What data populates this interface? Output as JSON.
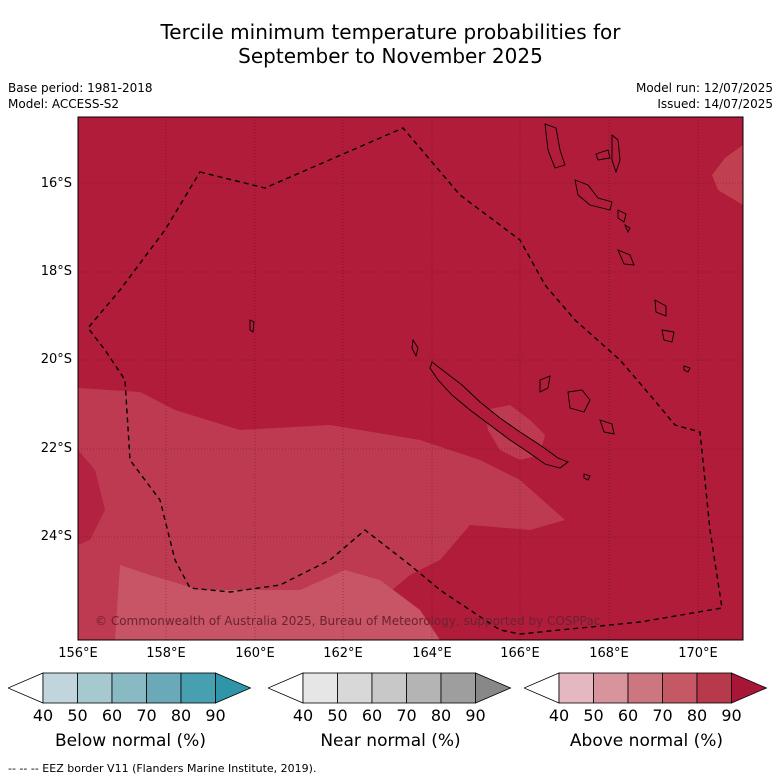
{
  "title_line1": "Tercile minimum temperature probabilities for",
  "title_line2": "September to November 2025",
  "base_period": "Base period: 1981-2018",
  "model": "Model: ACCESS-S2",
  "model_run": "Model run: 12/07/2025",
  "issued": "Issued: 14/07/2025",
  "lat_labels": [
    "16°S",
    "18°S",
    "20°S",
    "22°S",
    "24°S"
  ],
  "lon_labels": [
    "156°E",
    "158°E",
    "160°E",
    "162°E",
    "164°E",
    "166°E",
    "168°E",
    "170°E"
  ],
  "copyright": "© Commonwealth of Australia 2025, Bureau of Meteorology, supported by COSPPac",
  "colorbars": [
    {
      "label": "Below normal (%)",
      "ticks": [
        "40",
        "50",
        "60",
        "70",
        "80",
        "90"
      ],
      "colors": [
        "#c1d6dc",
        "#a6c8cf",
        "#89b9c3",
        "#6aaab8",
        "#47a0b0"
      ],
      "low": "#ffffff",
      "high": "#2f96aa"
    },
    {
      "label": "Near normal (%)",
      "ticks": [
        "40",
        "50",
        "60",
        "70",
        "80",
        "90"
      ],
      "colors": [
        "#e6e6e6",
        "#d8d8d8",
        "#c8c8c8",
        "#b4b4b4",
        "#9e9e9e"
      ],
      "low": "#ffffff",
      "high": "#888888"
    },
    {
      "label": "Above normal (%)",
      "ticks": [
        "40",
        "50",
        "60",
        "70",
        "80",
        "90"
      ],
      "colors": [
        "#e4b8be",
        "#d8949c",
        "#cc7680",
        "#c45865",
        "#b8394c"
      ],
      "low": "#ffffff",
      "high": "#a91538"
    }
  ],
  "eez_note": "--  --  -- EEZ border V11 (Flanders Marine Institute, 2019).",
  "colors": {
    "dominant": "#b01c3a",
    "moderate": "#bd3a50",
    "light": "#c75565"
  },
  "icons": [
    "coastline-outline",
    "eez-dashed-line"
  ]
}
